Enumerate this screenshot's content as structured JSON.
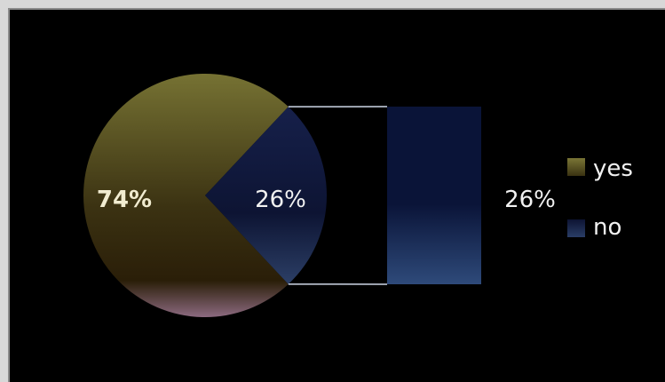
{
  "chart_data": {
    "type": "pie",
    "variant": "pie-of-bar",
    "slices": [
      {
        "name": "yes",
        "value": 74,
        "label": "74%",
        "color": "#6e6a26"
      },
      {
        "name": "no",
        "value": 26,
        "label": "26%",
        "color": "#1d2a52"
      }
    ],
    "bar": {
      "category": "no",
      "value": 26,
      "label": "26%",
      "color": "#1f3266"
    },
    "legend": {
      "placement": "right",
      "items": [
        {
          "name": "yes",
          "color": "#6e6a26"
        },
        {
          "name": "no",
          "color": "#1d2a52"
        }
      ]
    },
    "title": "",
    "background": "#000000"
  }
}
